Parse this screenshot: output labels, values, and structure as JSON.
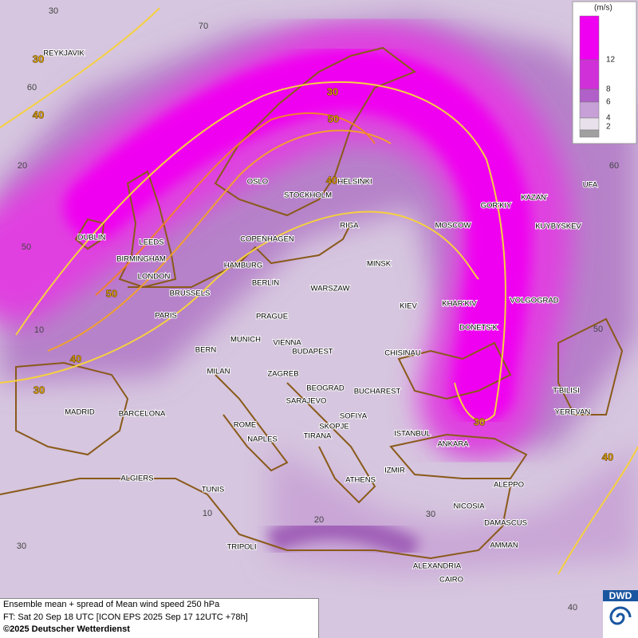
{
  "cities": [
    "REYKJAVIK",
    "OSLO",
    "HELSINKI",
    "STOCKHOLM",
    "DUBLIN",
    "LEEDS",
    "BIRMINGHAM",
    "LONDON",
    "COPENHAGEN",
    "HAMBURG",
    "RIGA",
    "MOSCOW",
    "GOR'KIY",
    "KAZAN'",
    "UFA",
    "KUYBYSKEV",
    "MINSK",
    "BERLIN",
    "WARSZAW",
    "KIEV",
    "KHAR'KIV",
    "VOLGOGRAD",
    "BRUSSELS",
    "PARIS",
    "PRAGUE",
    "DONETS'K",
    "MUNICH",
    "VIENNA",
    "BERN",
    "BUDAPEST",
    "CHISINAU",
    "MILAN",
    "ZAGREB",
    "BEOGRAD",
    "BUCHAREST",
    "T'BILISI",
    "MADRID",
    "BARCELONA",
    "YEREVAN",
    "SOFIYA",
    "SARAJEVO",
    "ROME",
    "SKOPJE",
    "TIRANA",
    "ISTANBUL",
    "NAPLES",
    "ANKARA",
    "IZMIR",
    "ALGIERS",
    "ATHENS",
    "ALEPPO",
    "TUNIS",
    "NICOSIA",
    "DAMASCUS",
    "AMMAN",
    "TRIPOLI",
    "ALEXANDRIA",
    "CAIRO"
  ],
  "contour_labels": [
    "30",
    "40",
    "30",
    "50",
    "40",
    "50",
    "40",
    "30",
    "30",
    "40"
  ],
  "grid_labels": [
    "30",
    "70",
    "60",
    "20",
    "60",
    "50",
    "50",
    "10",
    "20",
    "10",
    "30",
    "30",
    "40"
  ],
  "legend": {
    "unit": "(m/s)",
    "ticks": [
      "12",
      "8",
      "6",
      "4",
      "2"
    ]
  },
  "footer": [
    "Ensemble mean + spread of Mean wind speed 250 hPa",
    "FT: Sat 20 Sep 18 UTC [ICON EPS 2025 Sep 17 12UTC +78h]",
    "©2025 Deutscher Wetterdienst"
  ],
  "logo": "DWD"
}
